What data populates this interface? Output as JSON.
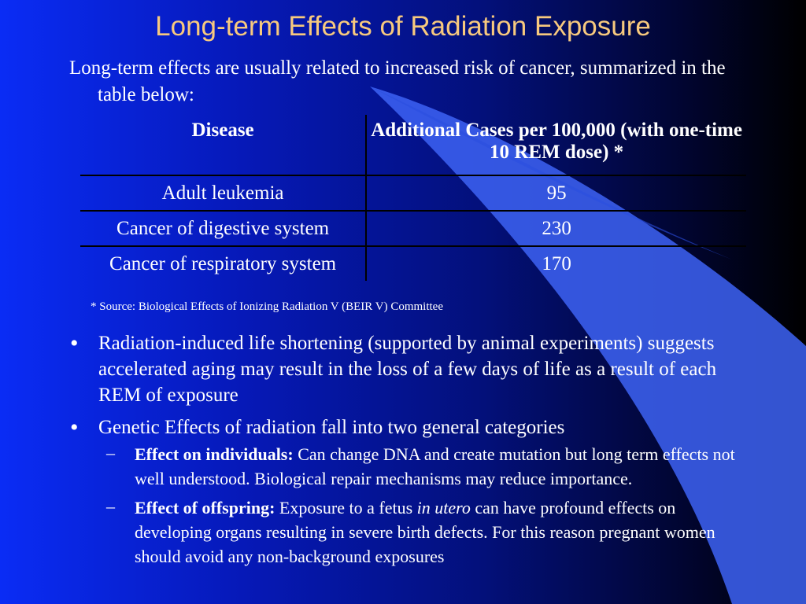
{
  "slide": {
    "title": "Long-term Effects of Radiation Exposure",
    "intro": "Long-term effects are usually related to increased risk of cancer, summarized in the table below:",
    "table": {
      "headers": [
        "Disease",
        "Additional Cases per 100,000 (with one-time 10 REM dose) *"
      ],
      "rows": [
        [
          "Adult leukemia",
          "95"
        ],
        [
          "Cancer of digestive system",
          "230"
        ],
        [
          "Cancer of respiratory system",
          "170"
        ]
      ]
    },
    "source_note": "* Source: Biological Effects of Ionizing Radiation V (BEIR V) Committee",
    "bullets": [
      {
        "text": "Radiation-induced life shortening (supported by animal experiments) suggests accelerated aging may result in the loss of a few days of life as a result of each REM of exposure"
      },
      {
        "text": "Genetic Effects of radiation fall into two general categories",
        "sub": [
          {
            "label": "Effect on individuals:",
            "text": " Can change DNA and create mutation but long term effects not well understood.  Biological repair mechanisms may reduce importance."
          },
          {
            "label": "Effect of offspring:",
            "text_before": " Exposure to a fetus ",
            "italic": "in utero",
            "text_after": " can have profound effects on developing organs resulting in severe birth defects.  For this reason pregnant women should avoid any non-background exposures"
          }
        ]
      }
    ],
    "bullet_glyph": "•",
    "dash_glyph": "–"
  },
  "theme": {
    "title_color": "#f7c97e",
    "text_color": "#ffffff",
    "swoosh_color": "#3d63f4"
  }
}
